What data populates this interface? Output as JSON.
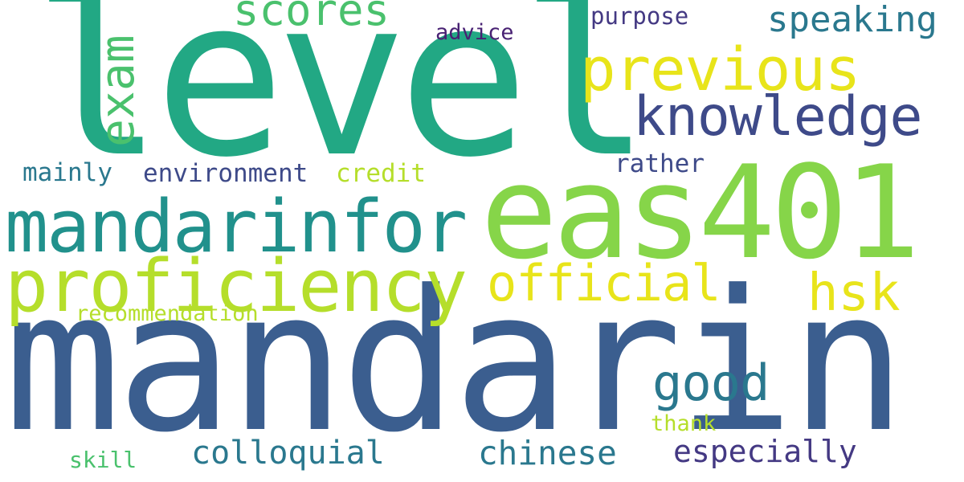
{
  "words": [
    {
      "text": "level",
      "color": "#22a884"
    },
    {
      "text": "mandarin",
      "color": "#3b5e8f"
    },
    {
      "text": "eas401",
      "color": "#86d549"
    },
    {
      "text": "mandarinfor",
      "color": "#21918c"
    },
    {
      "text": "proficiency",
      "color": "#b5de2b"
    },
    {
      "text": "previous",
      "color": "#e8e41a"
    },
    {
      "text": "knowledge",
      "color": "#3e4a89"
    },
    {
      "text": "official",
      "color": "#e8e41a"
    },
    {
      "text": "scores",
      "color": "#4ac16d"
    },
    {
      "text": "exam",
      "color": "#4ac16d"
    },
    {
      "text": "speaking",
      "color": "#2a788e"
    },
    {
      "text": "good",
      "color": "#2a788e"
    },
    {
      "text": "hsk",
      "color": "#e8e41a"
    },
    {
      "text": "especially",
      "color": "#443983"
    },
    {
      "text": "chinese",
      "color": "#2a788e"
    },
    {
      "text": "colloquial",
      "color": "#2a788e"
    },
    {
      "text": "environment",
      "color": "#3e4a89"
    },
    {
      "text": "credit",
      "color": "#b5de2b"
    },
    {
      "text": "mainly",
      "color": "#2a788e"
    },
    {
      "text": "rather",
      "color": "#3e4a89"
    },
    {
      "text": "purpose",
      "color": "#443983"
    },
    {
      "text": "advice",
      "color": "#482173"
    },
    {
      "text": "recommendation",
      "color": "#b5de2b"
    },
    {
      "text": "thank",
      "color": "#b5de2b"
    },
    {
      "text": "skill",
      "color": "#4ac16d"
    }
  ]
}
